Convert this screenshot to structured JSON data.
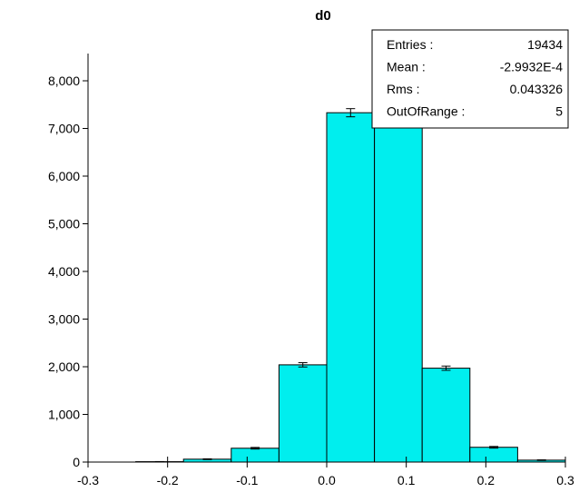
{
  "chart_data": {
    "type": "bar",
    "title": "d0",
    "xlabel": "",
    "ylabel": "",
    "xlim": [
      -0.3,
      0.3
    ],
    "ylim": [
      0,
      8000
    ],
    "bar_color": "#00eeee",
    "error_bar_color": "#000000",
    "x_ticks": [
      "-0.3",
      "-0.2",
      "-0.1",
      "0.0",
      "0.1",
      "0.2",
      "0.3"
    ],
    "y_ticks": [
      "0",
      "1,000",
      "2,000",
      "3,000",
      "4,000",
      "5,000",
      "6,000",
      "7,000",
      "8,000"
    ],
    "bins": [
      {
        "x0": -0.3,
        "x1": -0.24,
        "value": 0
      },
      {
        "x0": -0.24,
        "x1": -0.18,
        "value": 8
      },
      {
        "x0": -0.18,
        "x1": -0.12,
        "value": 60
      },
      {
        "x0": -0.12,
        "x1": -0.06,
        "value": 290
      },
      {
        "x0": -0.06,
        "x1": 0.0,
        "value": 2040
      },
      {
        "x0": 0.0,
        "x1": 0.06,
        "value": 7330
      },
      {
        "x0": 0.06,
        "x1": 0.12,
        "value": 7330
      },
      {
        "x0": 0.12,
        "x1": 0.18,
        "value": 1970
      },
      {
        "x0": 0.18,
        "x1": 0.24,
        "value": 310
      },
      {
        "x0": 0.24,
        "x1": 0.3,
        "value": 40
      }
    ],
    "stats": [
      {
        "label": "Entries :",
        "value": "19434"
      },
      {
        "label": "Mean :",
        "value": "-2.9932E-4"
      },
      {
        "label": "Rms :",
        "value": "0.043326"
      },
      {
        "label": "OutOfRange :",
        "value": "5"
      }
    ]
  }
}
